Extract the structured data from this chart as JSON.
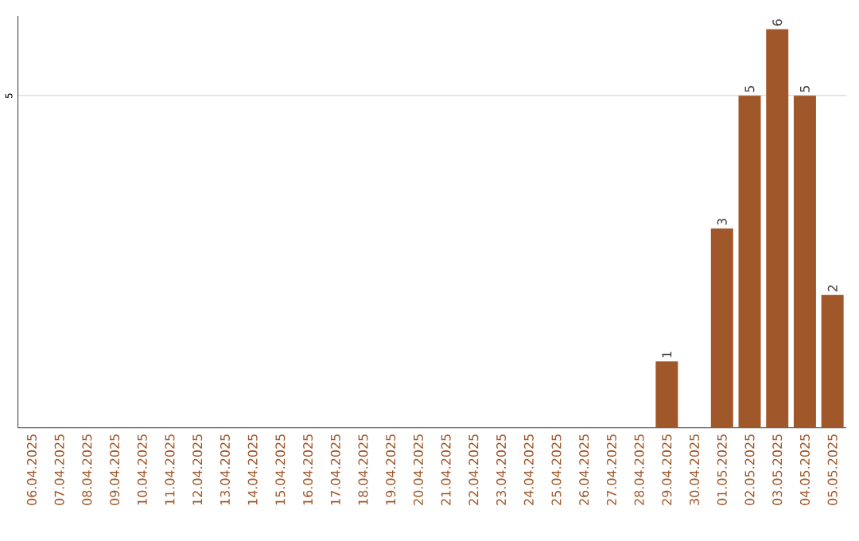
{
  "chart_data": {
    "type": "bar",
    "categories": [
      "06.04.2025",
      "07.04.2025",
      "08.04.2025",
      "09.04.2025",
      "10.04.2025",
      "11.04.2025",
      "12.04.2025",
      "13.04.2025",
      "14.04.2025",
      "15.04.2025",
      "16.04.2025",
      "17.04.2025",
      "18.04.2025",
      "19.04.2025",
      "20.04.2025",
      "21.04.2025",
      "22.04.2025",
      "23.04.2025",
      "24.04.2025",
      "25.04.2025",
      "26.04.2025",
      "27.04.2025",
      "28.04.2025",
      "29.04.2025",
      "30.04.2025",
      "01.05.2025",
      "02.05.2025",
      "03.05.2025",
      "04.05.2025",
      "05.05.2025"
    ],
    "values": [
      null,
      null,
      null,
      null,
      null,
      null,
      null,
      null,
      null,
      null,
      null,
      null,
      null,
      null,
      null,
      null,
      null,
      null,
      null,
      null,
      null,
      null,
      null,
      1,
      null,
      3,
      5,
      6,
      5,
      2
    ],
    "data_labels": true,
    "color": "#a0582a",
    "ylim": [
      0,
      6.2
    ],
    "yticks": [
      5
    ],
    "grid": "y"
  }
}
